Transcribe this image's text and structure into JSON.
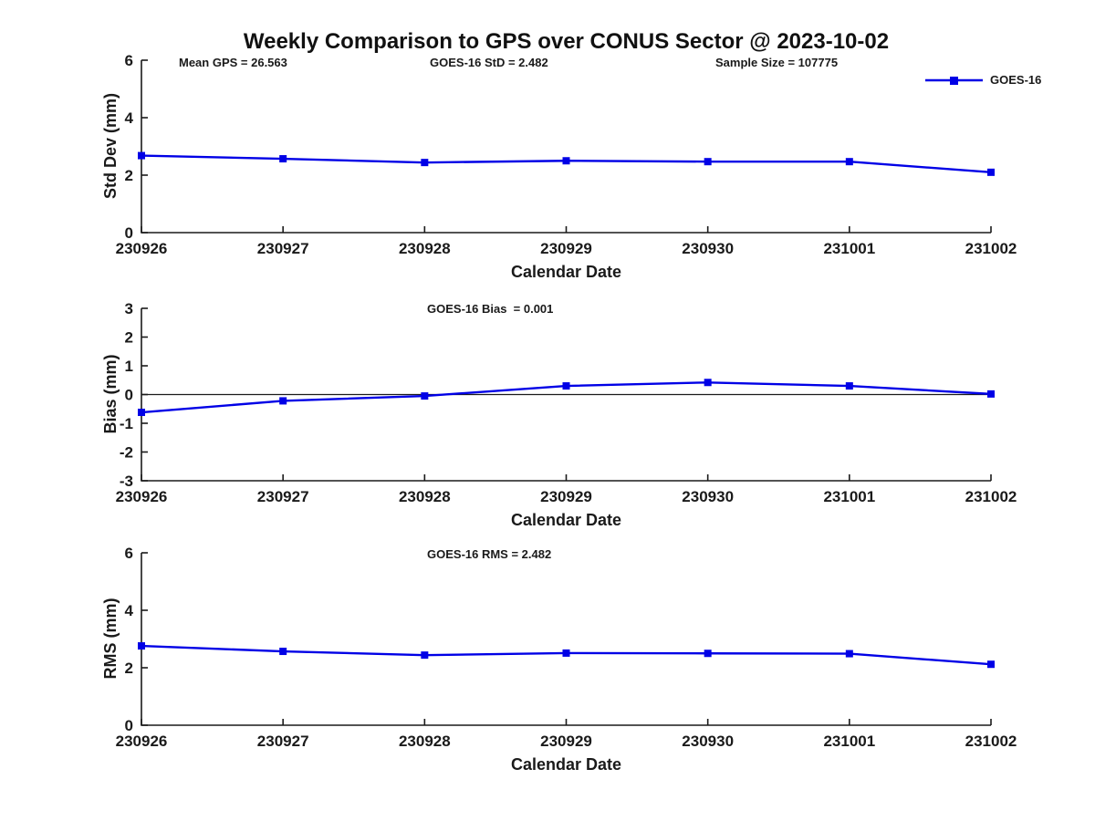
{
  "title": "Weekly Comparison to GPS over CONUS Sector @ 2023-10-02",
  "legend": {
    "label": "GOES-16"
  },
  "colors": {
    "line": "#0000e6",
    "axis": "#1a1a1a",
    "text": "#1a1a1a",
    "background": "#ffffff"
  },
  "chart_data": [
    {
      "type": "line",
      "name": "std-dev",
      "annotations": [
        "Mean GPS = 26.563",
        "GOES-16 StD = 2.482",
        "Sample Size = 107775"
      ],
      "categories": [
        "230926",
        "230927",
        "230928",
        "230929",
        "230930",
        "231001",
        "231002"
      ],
      "series": [
        {
          "name": "GOES-16",
          "values": [
            2.68,
            2.57,
            2.44,
            2.5,
            2.47,
            2.47,
            2.1
          ]
        }
      ],
      "xlabel": "Calendar Date",
      "ylabel": "Std Dev (mm)",
      "ylim": [
        0,
        6
      ],
      "yticks": [
        0,
        2,
        4,
        6
      ],
      "zero_line": false,
      "legend_position": "top-right-outside",
      "grid": false
    },
    {
      "type": "line",
      "name": "bias",
      "annotations": [
        "GOES-16 Bias  = 0.001"
      ],
      "categories": [
        "230926",
        "230927",
        "230928",
        "230929",
        "230930",
        "231001",
        "231002"
      ],
      "series": [
        {
          "name": "GOES-16",
          "values": [
            -0.62,
            -0.22,
            -0.05,
            0.3,
            0.42,
            0.3,
            0.02
          ]
        }
      ],
      "xlabel": "Calendar Date",
      "ylabel": "Bias (mm)",
      "ylim": [
        -3,
        3
      ],
      "yticks": [
        -3,
        -2,
        -1,
        0,
        1,
        2,
        3
      ],
      "zero_line": true,
      "grid": false
    },
    {
      "type": "line",
      "name": "rms",
      "annotations": [
        "GOES-16 RMS = 2.482"
      ],
      "categories": [
        "230926",
        "230927",
        "230928",
        "230929",
        "230930",
        "231001",
        "231002"
      ],
      "series": [
        {
          "name": "GOES-16",
          "values": [
            2.76,
            2.57,
            2.44,
            2.51,
            2.5,
            2.49,
            2.12
          ]
        }
      ],
      "xlabel": "Calendar Date",
      "ylabel": "RMS (mm)",
      "ylim": [
        0,
        6
      ],
      "yticks": [
        0,
        2,
        4,
        6
      ],
      "zero_line": false,
      "grid": false
    }
  ]
}
